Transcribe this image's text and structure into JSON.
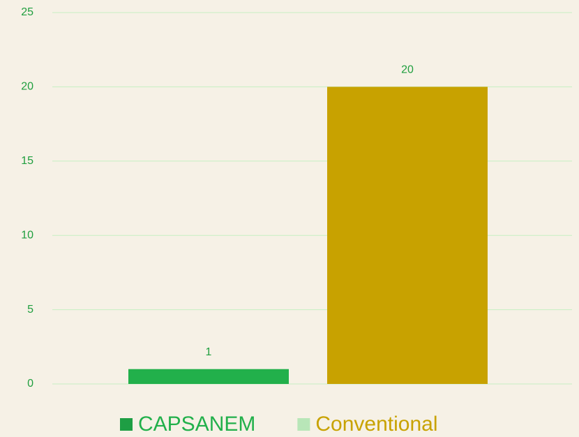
{
  "chart_data": {
    "type": "bar",
    "categories": [
      null
    ],
    "series": [
      {
        "name": "CAPSANEM",
        "color": "#22b04b",
        "marker_color": "#1e9e44",
        "values": [
          1
        ]
      },
      {
        "name": "Conventional",
        "color": "#c8a200",
        "marker_color": "#b8e6b8",
        "values": [
          20
        ]
      }
    ],
    "ylim": [
      0,
      25
    ],
    "yticks": [
      0,
      5,
      10,
      15,
      20,
      25
    ],
    "grid": true,
    "legend": "bottom"
  }
}
